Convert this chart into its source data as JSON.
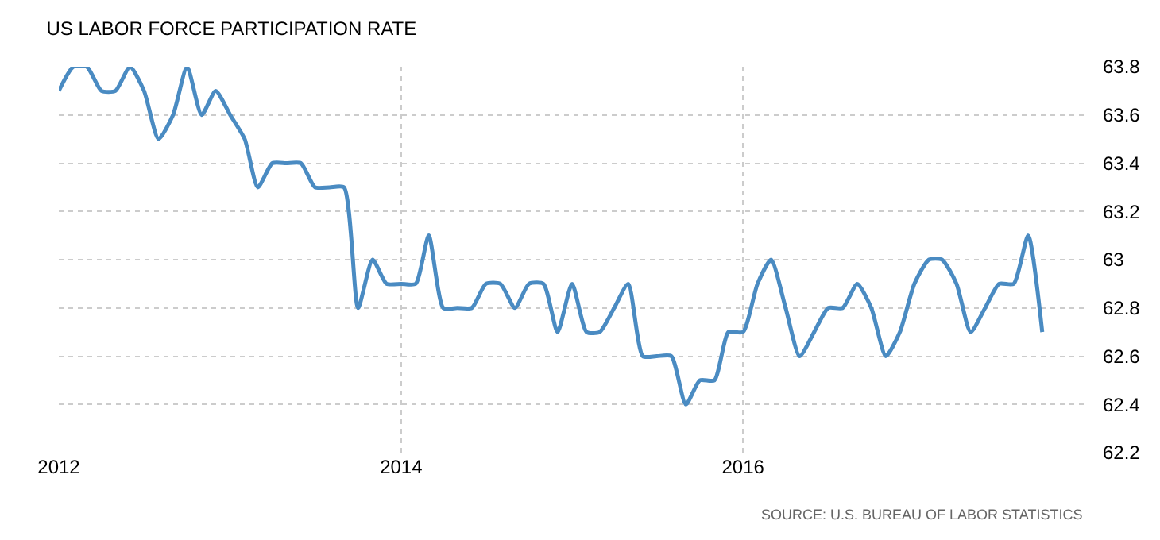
{
  "chart_data": {
    "type": "line",
    "title": "US LABOR FORCE PARTICIPATION RATE",
    "x": [
      "2012-01",
      "2012-02",
      "2012-03",
      "2012-04",
      "2012-05",
      "2012-06",
      "2012-07",
      "2012-08",
      "2012-09",
      "2012-10",
      "2012-11",
      "2012-12",
      "2013-01",
      "2013-02",
      "2013-03",
      "2013-04",
      "2013-05",
      "2013-06",
      "2013-07",
      "2013-08",
      "2013-09",
      "2013-10",
      "2013-11",
      "2013-12",
      "2014-01",
      "2014-02",
      "2014-03",
      "2014-04",
      "2014-05",
      "2014-06",
      "2014-07",
      "2014-08",
      "2014-09",
      "2014-10",
      "2014-11",
      "2014-12",
      "2015-01",
      "2015-02",
      "2015-03",
      "2015-04",
      "2015-05",
      "2015-06",
      "2015-07",
      "2015-08",
      "2015-09",
      "2015-10",
      "2015-11",
      "2015-12",
      "2016-01",
      "2016-02",
      "2016-03",
      "2016-04",
      "2016-05",
      "2016-06",
      "2016-07",
      "2016-08",
      "2016-09",
      "2016-10",
      "2016-11",
      "2016-12",
      "2017-01",
      "2017-02",
      "2017-03",
      "2017-04",
      "2017-05",
      "2017-06",
      "2017-07",
      "2017-08",
      "2017-09",
      "2017-10"
    ],
    "series": [
      {
        "color": "#4a8bc2",
        "values": [
          63.7,
          63.8,
          63.8,
          63.7,
          63.7,
          63.8,
          63.7,
          63.5,
          63.6,
          63.8,
          63.6,
          63.7,
          63.6,
          63.5,
          63.3,
          63.4,
          63.4,
          63.4,
          63.3,
          63.3,
          63.3,
          62.8,
          63.0,
          62.9,
          62.9,
          62.9,
          63.1,
          62.8,
          62.8,
          62.8,
          62.9,
          62.9,
          62.8,
          62.9,
          62.9,
          62.7,
          62.9,
          62.7,
          62.7,
          62.8,
          62.9,
          62.6,
          62.6,
          62.6,
          62.4,
          62.5,
          62.5,
          62.7,
          62.7,
          62.9,
          63.0,
          62.8,
          62.6,
          62.7,
          62.8,
          62.8,
          62.9,
          62.8,
          62.6,
          62.7,
          62.9,
          63.0,
          63.0,
          62.9,
          62.7,
          62.8,
          62.9,
          62.9,
          63.1,
          62.7
        ]
      }
    ],
    "xlim": [
      "2012-01-01",
      "2018-01-01"
    ],
    "xticks": [
      {
        "value": "2012-01-01",
        "label": "2012"
      },
      {
        "value": "2014-01-01",
        "label": "2014"
      },
      {
        "value": "2016-01-01",
        "label": "2016"
      }
    ],
    "ylim": [
      62.2,
      63.8
    ],
    "yticks": [
      62.2,
      62.4,
      62.6,
      62.8,
      63,
      63.2,
      63.4,
      63.6,
      63.8
    ],
    "grid": true,
    "marker": "none",
    "line_style": "solid",
    "annotations": [
      "SOURCE: U.S. BUREAU OF LABOR STATISTICS"
    ]
  }
}
